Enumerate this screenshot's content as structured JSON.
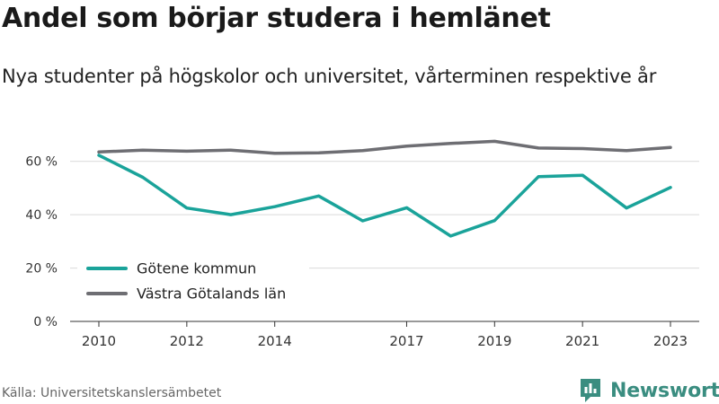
{
  "header": {
    "title": "Andel som börjar studera i hemlänet",
    "subtitle": "Nya studenter på högskolor och universitet, vårterminen respektive år"
  },
  "footer": {
    "source": "Källa: Universitetskanslersämbetet",
    "brand": "Newsworthy",
    "brand_icon": "newsworthy-logo-icon"
  },
  "colors": {
    "gotene": "#1aa39a",
    "vastra_gotaland": "#6e6e73",
    "grid": "#d9d9d9",
    "axis": "#333333",
    "brand": "#3a8d80"
  },
  "chart_data": {
    "type": "line",
    "x": [
      2010,
      2011,
      2012,
      2013,
      2014,
      2015,
      2016,
      2017,
      2018,
      2019,
      2020,
      2021,
      2022,
      2023
    ],
    "x_tick_values": [
      2010,
      2012,
      2014,
      2017,
      2019,
      2021,
      2023
    ],
    "x_tick_labels": [
      "2010",
      "2012",
      "2014",
      "2017",
      "2019",
      "2021",
      "2023"
    ],
    "xlim": [
      2010,
      2023
    ],
    "y_tick_values": [
      0,
      20,
      40,
      60
    ],
    "y_tick_labels": [
      "0 %",
      "20 %",
      "40 %",
      "60 %"
    ],
    "ylim": [
      0,
      70
    ],
    "grid": true,
    "legend_position": "bottom-left",
    "series": [
      {
        "name": "Götene kommun",
        "color": "#1aa39a",
        "values": [
          62.3,
          54,
          42.5,
          40,
          43,
          47,
          37.7,
          42.6,
          32,
          37.8,
          54.3,
          54.8,
          42.5,
          50.2
        ]
      },
      {
        "name": "Västra Götalands län",
        "color": "#6e6e73",
        "values": [
          63.5,
          64.2,
          63.8,
          64.2,
          63,
          63.2,
          64,
          65.7,
          66.7,
          67.5,
          65,
          64.8,
          64,
          65.2
        ]
      }
    ]
  }
}
